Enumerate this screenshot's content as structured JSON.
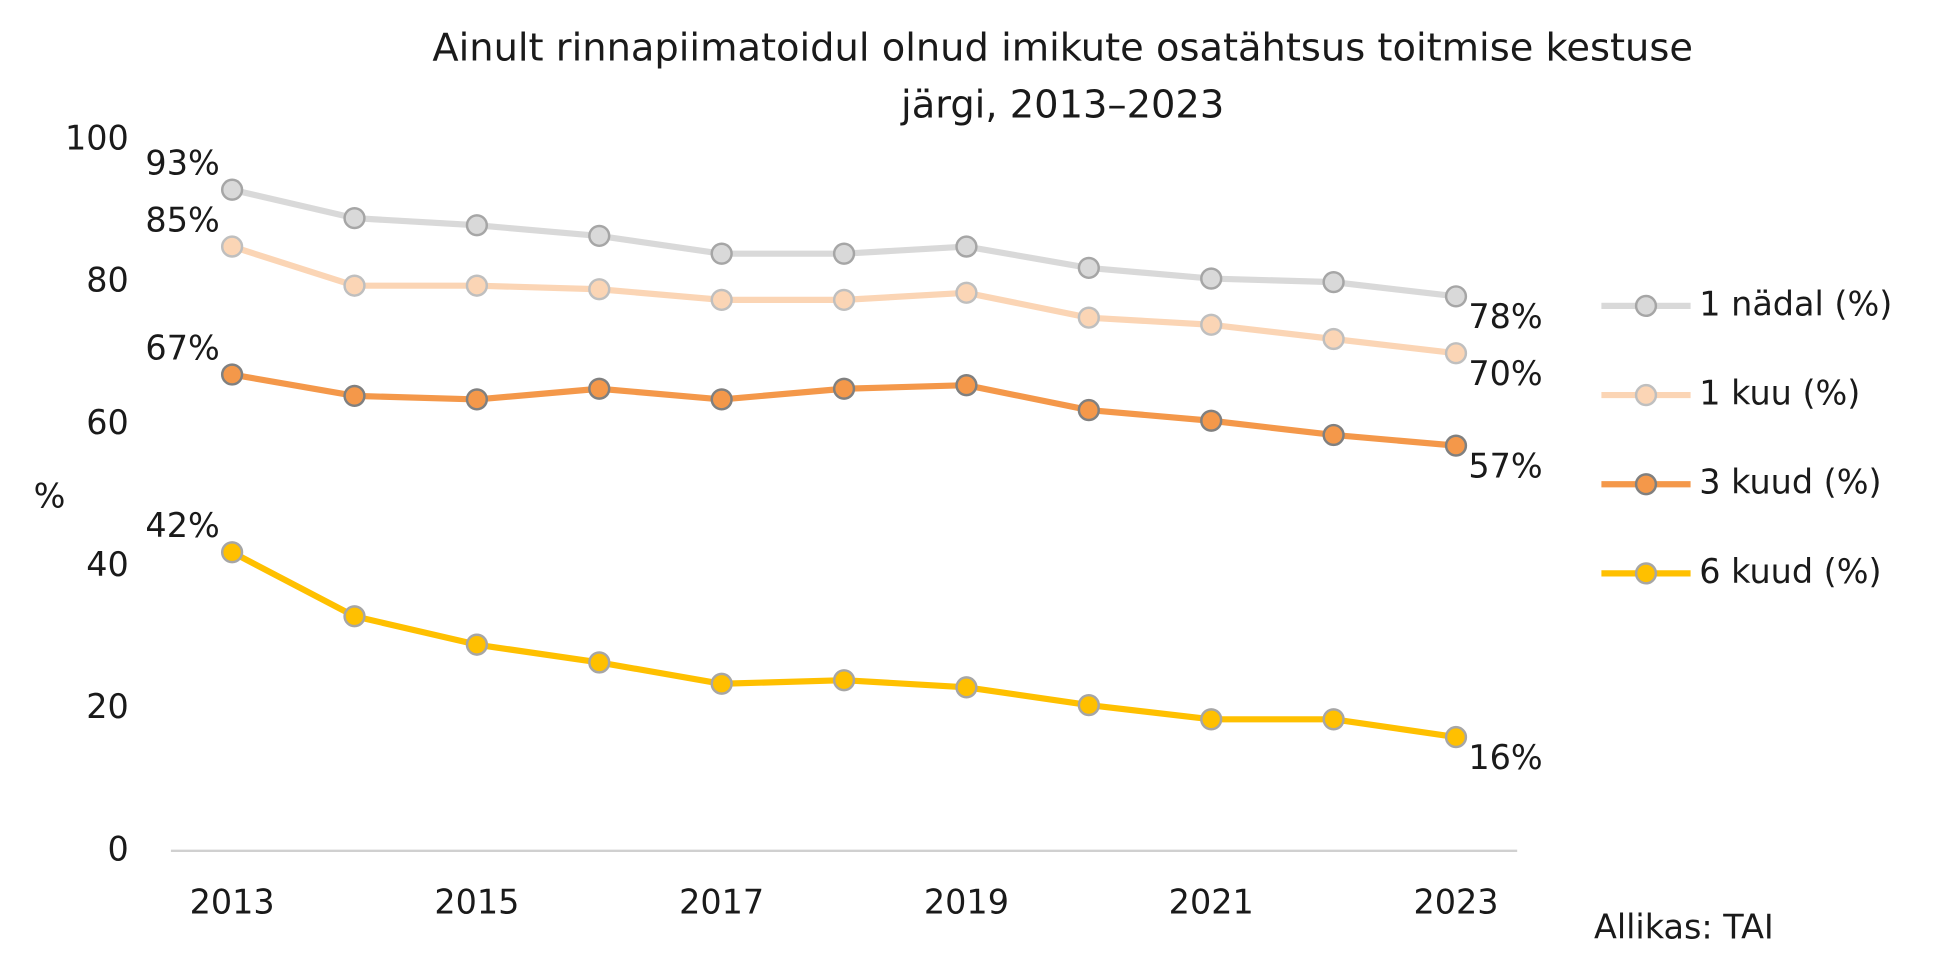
{
  "chart_data": {
    "type": "line",
    "title": "Ainult rinnapiimatoidul olnud imikute osatähtsus toitmise kestuse järgi, 2013–2023",
    "y_label": "%",
    "source": "Allikas: TAI",
    "x": [
      2013,
      2014,
      2015,
      2016,
      2017,
      2018,
      2019,
      2020,
      2021,
      2022,
      2023
    ],
    "xlim": [
      2012.5,
      2023.5
    ],
    "xticks": [
      2013,
      2015,
      2017,
      2019,
      2021,
      2023
    ],
    "ylim": [
      0,
      100
    ],
    "yticks": [
      0,
      20,
      40,
      60,
      80,
      100
    ],
    "grid": false,
    "legend": "right",
    "series": [
      {
        "name": "1 nädal (%)",
        "color": "#d9d9d9",
        "values": [
          93,
          89,
          88,
          86.5,
          84,
          84,
          85,
          82,
          80.5,
          80,
          78
        ],
        "value_labels": [
          "93%",
          null,
          null,
          null,
          null,
          null,
          null,
          null,
          null,
          null,
          "78%"
        ]
      },
      {
        "name": "1 kuu (%)",
        "color": "#fbd5b5",
        "values": [
          85,
          79.5,
          79.5,
          79,
          77.5,
          77.5,
          78.5,
          75,
          74,
          72,
          70
        ],
        "value_labels": [
          "85%",
          null,
          null,
          null,
          null,
          null,
          null,
          null,
          null,
          null,
          "70%"
        ]
      },
      {
        "name": "3 kuud (%)",
        "color": "#f4984a",
        "values": [
          67,
          64,
          63.5,
          65,
          63.5,
          65,
          65.5,
          62,
          60.5,
          58.5,
          57
        ],
        "value_labels": [
          "67%",
          null,
          null,
          null,
          null,
          null,
          null,
          null,
          null,
          null,
          "57%"
        ]
      },
      {
        "name": "6 kuud (%)",
        "color": "#ffc000",
        "values": [
          42,
          33,
          29,
          26.5,
          23.5,
          24,
          23,
          20.5,
          18.5,
          18.5,
          16
        ],
        "value_labels": [
          "42%",
          null,
          null,
          null,
          null,
          null,
          null,
          null,
          null,
          null,
          "16%"
        ]
      }
    ]
  }
}
